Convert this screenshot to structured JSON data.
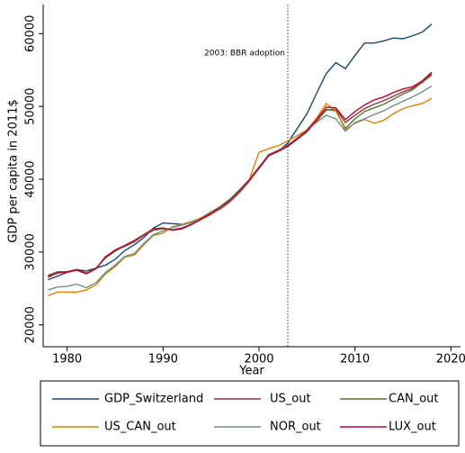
{
  "chart_data": {
    "type": "line",
    "y_label": "GDP per capita in 2011$",
    "x_label": "Year",
    "annotation": {
      "x": 2003,
      "text": "2003: BBR adoption"
    },
    "x": [
      1978,
      1979,
      1980,
      1981,
      1982,
      1983,
      1984,
      1985,
      1986,
      1987,
      1988,
      1989,
      1990,
      1991,
      1992,
      1993,
      1994,
      1995,
      1996,
      1997,
      1998,
      1999,
      2000,
      2001,
      2002,
      2003,
      2004,
      2005,
      2006,
      2007,
      2008,
      2009,
      2010,
      2011,
      2012,
      2013,
      2014,
      2015,
      2016,
      2017,
      2018
    ],
    "series": [
      {
        "name": "GDP_Switzerland",
        "color": "#1a476f",
        "values": [
          26200,
          26700,
          27200,
          27600,
          27400,
          27800,
          28200,
          29000,
          30200,
          31000,
          32000,
          33300,
          34000,
          33900,
          33800,
          34200,
          34700,
          35500,
          36000,
          37000,
          38300,
          39800,
          41500,
          43200,
          43800,
          45000,
          47000,
          49000,
          51800,
          54500,
          56000,
          55200,
          57000,
          58700,
          58700,
          59000,
          59400,
          59300,
          59700,
          60200,
          61300
        ]
      },
      {
        "name": "US_out",
        "color": "#90353b",
        "values": [
          26500,
          27200,
          27200,
          27500,
          27000,
          27700,
          29400,
          30200,
          30800,
          31400,
          32300,
          33000,
          33300,
          33000,
          33200,
          33800,
          34500,
          35200,
          36000,
          37000,
          38300,
          39800,
          41500,
          43300,
          43800,
          44500,
          45500,
          46500,
          48000,
          49500,
          49600,
          47800,
          48800,
          49700,
          50300,
          50800,
          51400,
          52000,
          52500,
          53300,
          54500
        ]
      },
      {
        "name": "CAN_out",
        "color": "#55752f",
        "values": [
          26800,
          27300,
          27300,
          27600,
          27100,
          27800,
          29200,
          30100,
          30900,
          31500,
          32300,
          33000,
          33200,
          33100,
          33300,
          33900,
          34700,
          35500,
          36300,
          37300,
          38600,
          40000,
          41700,
          43300,
          43800,
          44600,
          45700,
          46600,
          48100,
          49600,
          49400,
          47000,
          48300,
          49300,
          49800,
          50300,
          51000,
          51700,
          52300,
          53300,
          54300
        ]
      },
      {
        "name": "US_CAN_out",
        "color": "#e37e00",
        "values": [
          24000,
          24500,
          24500,
          24500,
          24800,
          25500,
          27000,
          28000,
          29300,
          29600,
          31000,
          32300,
          32600,
          33500,
          33800,
          34200,
          34700,
          35400,
          36000,
          37000,
          38300,
          40000,
          43700,
          44200,
          44600,
          45300,
          46000,
          46800,
          48400,
          50400,
          49400,
          46800,
          47700,
          48200,
          47700,
          48100,
          49000,
          49700,
          50100,
          50400,
          51100
        ]
      },
      {
        "name": "NOR_out",
        "color": "#6e8e84",
        "values": [
          24800,
          25200,
          25300,
          25600,
          25100,
          25800,
          27200,
          28200,
          29400,
          29800,
          31200,
          32400,
          32900,
          33400,
          33700,
          34100,
          34600,
          35300,
          35900,
          36900,
          38200,
          39700,
          41600,
          43400,
          44000,
          44700,
          45700,
          46700,
          47800,
          48800,
          48300,
          46600,
          47800,
          48300,
          48900,
          49400,
          50100,
          50700,
          51300,
          52000,
          52800
        ]
      },
      {
        "name": "LUX_out",
        "color": "#c10534",
        "values": [
          26700,
          27100,
          27300,
          27600,
          27100,
          27700,
          29300,
          30300,
          30900,
          31600,
          32400,
          33200,
          33300,
          33000,
          33300,
          33800,
          34600,
          35300,
          36100,
          37100,
          38400,
          39900,
          41600,
          43300,
          43900,
          44600,
          45600,
          46700,
          48200,
          49900,
          49800,
          48200,
          49300,
          50200,
          50900,
          51300,
          51900,
          52400,
          52700,
          53500,
          54700
        ]
      }
    ],
    "xlim": [
      1977.5,
      2021
    ],
    "xticks": [
      1980,
      1990,
      2000,
      2010,
      2020
    ],
    "ylim": [
      17000,
      64000
    ],
    "yticks": [
      20000,
      30000,
      40000,
      50000,
      60000
    ]
  }
}
